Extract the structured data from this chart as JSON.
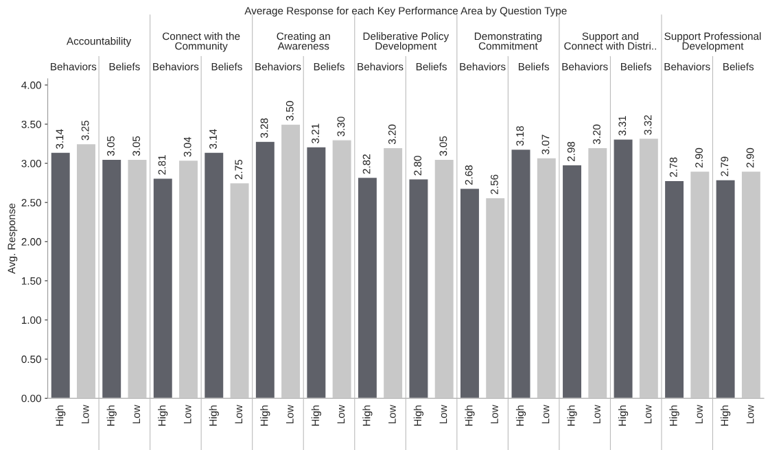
{
  "chart_data": {
    "type": "bar",
    "title": "Average Response for each Key Performance Area by Question Type",
    "ylabel": "Avg. Response",
    "categories": [
      "High",
      "Low",
      "High",
      "Low",
      "High",
      "Low",
      "High",
      "Low",
      "High",
      "Low",
      "High",
      "Low",
      "High",
      "Low",
      "High",
      "Low",
      "High",
      "Low",
      "High",
      "Low",
      "High",
      "Low",
      "High",
      "Low",
      "High",
      "Low",
      "High",
      "Low"
    ],
    "values": [
      3.14,
      3.25,
      3.05,
      3.05,
      2.81,
      3.04,
      3.14,
      2.75,
      3.28,
      3.5,
      3.21,
      3.3,
      2.82,
      3.2,
      2.8,
      3.05,
      2.68,
      2.56,
      3.18,
      3.07,
      2.98,
      3.2,
      3.31,
      3.32,
      2.78,
      2.9,
      2.79,
      2.9
    ],
    "value_labels": [
      "3.14",
      "3.25",
      "3.05",
      "3.05",
      "2.81",
      "3.04",
      "3.14",
      "2.75",
      "3.28",
      "3.50",
      "3.21",
      "3.30",
      "2.82",
      "3.20",
      "2.80",
      "3.05",
      "2.68",
      "2.56",
      "3.18",
      "3.07",
      "2.98",
      "3.20",
      "3.31",
      "3.32",
      "2.78",
      "2.90",
      "2.79",
      "2.90"
    ],
    "colors": [
      "#5f6169",
      "#c8c8c8",
      "#5f6169",
      "#c8c8c8",
      "#5f6169",
      "#c8c8c8",
      "#5f6169",
      "#c8c8c8",
      "#5f6169",
      "#c8c8c8",
      "#5f6169",
      "#c8c8c8",
      "#5f6169",
      "#c8c8c8",
      "#5f6169",
      "#c8c8c8",
      "#5f6169",
      "#c8c8c8",
      "#5f6169",
      "#c8c8c8",
      "#5f6169",
      "#c8c8c8",
      "#5f6169",
      "#c8c8c8",
      "#5f6169",
      "#c8c8c8",
      "#5f6169",
      "#c8c8c8"
    ],
    "ylim": [
      0,
      4.08
    ],
    "yticks": [
      {
        "value": 0,
        "label": "0.00"
      },
      {
        "value": 0.5,
        "label": "0.50"
      },
      {
        "value": 1,
        "label": "1.00"
      },
      {
        "value": 1.5,
        "label": "1.50"
      },
      {
        "value": 2,
        "label": "2.00"
      },
      {
        "value": 2.5,
        "label": "2.50"
      },
      {
        "value": 3,
        "label": "3.00"
      },
      {
        "value": 3.5,
        "label": "3.50"
      },
      {
        "value": 4,
        "label": "4.00"
      }
    ],
    "annotations": [
      "Accountability",
      "Connect with the\nCommunity",
      "Creating an\nAwareness",
      "Deliberative Policy\nDevelopment",
      "Demonstrating\nCommitment",
      "Support and\nConnect with Distri..",
      "Support Professional\nDevelopment",
      "Behaviors",
      "Beliefs",
      "Behaviors",
      "Beliefs",
      "Behaviors",
      "Beliefs",
      "Behaviors",
      "Beliefs",
      "Behaviors",
      "Beliefs",
      "Behaviors",
      "Beliefs",
      "Behaviors",
      "Beliefs"
    ],
    "grid": false
  }
}
